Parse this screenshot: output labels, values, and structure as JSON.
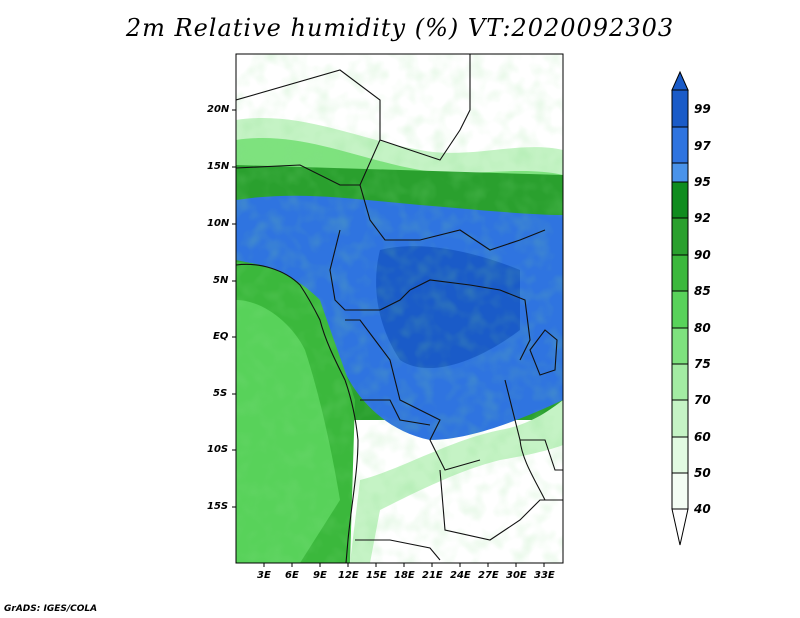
{
  "title": "2m Relative humidity (%) VT:2020092303",
  "credit": "GrADS: IGES/COLA",
  "lat_ticks": [
    "20N",
    "15N",
    "10N",
    "5N",
    "EQ",
    "5S",
    "10S",
    "15S"
  ],
  "lon_ticks": [
    "3E",
    "6E",
    "9E",
    "12E",
    "15E",
    "18E",
    "21E",
    "24E",
    "27E",
    "30E",
    "33E"
  ],
  "colorbar": {
    "levels": [
      "99",
      "97",
      "95",
      "92",
      "90",
      "85",
      "80",
      "75",
      "70",
      "60",
      "50",
      "40"
    ],
    "colors": [
      "#1a5bc8",
      "#2f74e0",
      "#4a93ea",
      "#0f8c1f",
      "#2aa02e",
      "#3bb83c",
      "#58d25a",
      "#7ee27e",
      "#a3eba3",
      "#c5f3c5",
      "#e2fae2",
      "#ffffff"
    ]
  }
}
